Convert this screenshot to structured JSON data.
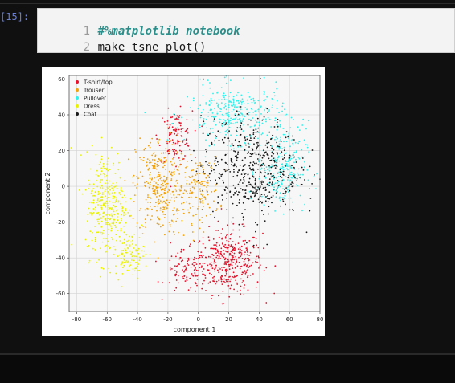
{
  "cell": {
    "prompt": "[15]:",
    "lines": [
      {
        "num": "1",
        "text": "#%matplotlib notebook"
      },
      {
        "num": "2",
        "text": "make_tsne_plot()"
      }
    ]
  },
  "chart_data": {
    "type": "scatter",
    "title": "",
    "xlabel": "component 1",
    "ylabel": "component 2",
    "xlim": [
      -85,
      80
    ],
    "ylim": [
      -70,
      62
    ],
    "xticks": [
      -80,
      -60,
      -40,
      -20,
      0,
      20,
      40,
      60,
      80
    ],
    "yticks": [
      -60,
      -40,
      -20,
      0,
      20,
      40,
      60
    ],
    "grid": true,
    "legend_position": "top-left",
    "series": [
      {
        "name": "T-shirt/top",
        "color": "#e8102a",
        "clusters": [
          {
            "cx": 20,
            "cy": -42,
            "rx": 22,
            "ry": 18,
            "n": 380
          },
          {
            "cx": -8,
            "cy": -48,
            "rx": 14,
            "ry": 12,
            "n": 90
          },
          {
            "cx": -15,
            "cy": 28,
            "rx": 11,
            "ry": 14,
            "n": 120
          }
        ]
      },
      {
        "name": "Trouser",
        "color": "#f2a20c",
        "clusters": [
          {
            "cx": -25,
            "cy": 0,
            "rx": 16,
            "ry": 28,
            "n": 330
          },
          {
            "cx": 0,
            "cy": -2,
            "rx": 14,
            "ry": 18,
            "n": 140
          }
        ]
      },
      {
        "name": "Pullover",
        "color": "#2ef2ec",
        "clusters": [
          {
            "cx": 25,
            "cy": 40,
            "rx": 32,
            "ry": 16,
            "n": 330
          },
          {
            "cx": 55,
            "cy": 10,
            "rx": 16,
            "ry": 22,
            "n": 230
          }
        ]
      },
      {
        "name": "Dress",
        "color": "#e8f200",
        "clusters": [
          {
            "cx": -60,
            "cy": -10,
            "rx": 14,
            "ry": 30,
            "n": 320
          },
          {
            "cx": -45,
            "cy": -38,
            "rx": 10,
            "ry": 12,
            "n": 100
          }
        ]
      },
      {
        "name": "Coat",
        "color": "#1a1a1a",
        "clusters": [
          {
            "cx": 35,
            "cy": 10,
            "rx": 32,
            "ry": 28,
            "n": 520
          }
        ]
      }
    ]
  }
}
